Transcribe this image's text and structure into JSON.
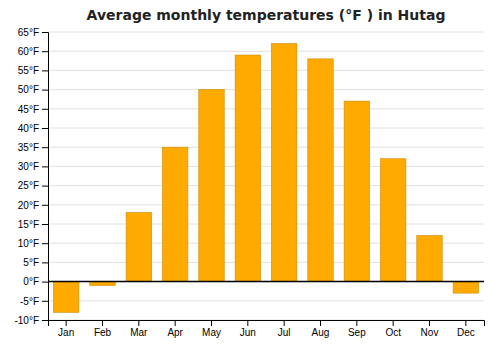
{
  "chart_data": {
    "type": "bar",
    "title": "Average monthly temperatures (°F ) in Hutag",
    "categories": [
      "Jan",
      "Feb",
      "Mar",
      "Apr",
      "May",
      "Jun",
      "Jul",
      "Aug",
      "Sep",
      "Oct",
      "Nov",
      "Dec"
    ],
    "values": [
      -8,
      -1,
      18,
      35,
      50,
      59,
      62,
      58,
      47,
      32,
      12,
      -3
    ],
    "color": "#FFAA00",
    "ylim": [
      -10,
      65
    ],
    "yticks": [
      {
        "value": -10,
        "label": "-10°F"
      },
      {
        "value": -5,
        "label": "-5°F"
      },
      {
        "value": 0,
        "label": "0°F"
      },
      {
        "value": 5,
        "label": "5°F"
      },
      {
        "value": 10,
        "label": "10°F"
      },
      {
        "value": 15,
        "label": "15°F"
      },
      {
        "value": 20,
        "label": "20°F"
      },
      {
        "value": 25,
        "label": "25°F"
      },
      {
        "value": 30,
        "label": "30°F"
      },
      {
        "value": 35,
        "label": "35°F"
      },
      {
        "value": 40,
        "label": "40°F"
      },
      {
        "value": 45,
        "label": "45°F"
      },
      {
        "value": 50,
        "label": "50°F"
      },
      {
        "value": 55,
        "label": "55°F"
      },
      {
        "value": 60,
        "label": "60°F"
      },
      {
        "value": 65,
        "label": "65°F"
      }
    ],
    "grid": true
  }
}
